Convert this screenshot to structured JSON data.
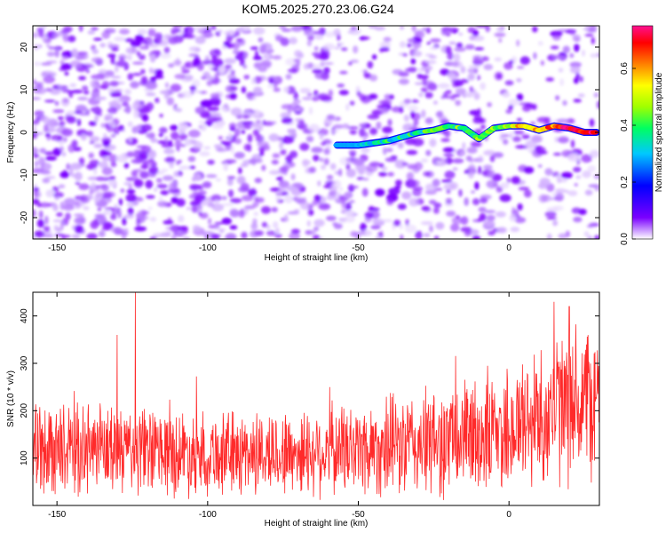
{
  "title": "KOM5.2025.270.23.06.G24",
  "colors": {
    "snr_line": "#ff2a2a",
    "spec_dots": "#8a2be2",
    "background": "#ffffff"
  },
  "chart_data": [
    {
      "type": "heatmap",
      "name": "spectrogram",
      "xlabel": "Height of straight line (km)",
      "ylabel": "Frequency (Hz)",
      "xlim": [
        -158,
        30
      ],
      "ylim": [
        -25,
        25
      ],
      "xticks": [
        -150,
        -100,
        -50,
        0
      ],
      "yticks": [
        -20,
        -10,
        0,
        10,
        20
      ],
      "colorbar": {
        "label": "Normalized spectral amplitude",
        "ticks": [
          0.0,
          0.2,
          0.4,
          0.6
        ],
        "range": [
          0.0,
          0.75
        ]
      },
      "signal_track": {
        "description": "coherent signal line",
        "x": [
          -57,
          -50,
          -45,
          -40,
          -35,
          -30,
          -25,
          -20,
          -15,
          -10,
          -5,
          0,
          5,
          10,
          15,
          20,
          25,
          29
        ],
        "frequency": [
          -3,
          -3,
          -2.5,
          -2,
          -1,
          0,
          0.5,
          1.5,
          1,
          -1.5,
          1,
          1.5,
          1.5,
          0.5,
          1.5,
          1,
          0,
          0
        ],
        "amplitude": [
          0.25,
          0.3,
          0.32,
          0.34,
          0.35,
          0.36,
          0.38,
          0.4,
          0.4,
          0.42,
          0.45,
          0.5,
          0.55,
          0.6,
          0.65,
          0.7,
          0.72,
          0.75
        ]
      }
    },
    {
      "type": "line",
      "name": "snr",
      "xlabel": "Height of straight line (km)",
      "ylabel": "SNR (10 * v/v)",
      "xlim": [
        -158,
        30
      ],
      "ylim": [
        0,
        450
      ],
      "xticks": [
        -150,
        -100,
        -50,
        0
      ],
      "yticks": [
        100,
        200,
        300,
        400
      ],
      "series": [
        {
          "name": "SNR",
          "envelope_x": [
            -158,
            -125,
            -100,
            -75,
            -50,
            -25,
            0,
            15,
            30
          ],
          "envelope_mean": [
            120,
            115,
            110,
            110,
            120,
            130,
            160,
            200,
            230
          ],
          "envelope_spread": [
            90,
            90,
            85,
            85,
            95,
            110,
            130,
            150,
            160
          ],
          "spikes": [
            {
              "x": -124,
              "y": 450
            },
            {
              "x": -130,
              "y": 360
            },
            {
              "x": 15,
              "y": 430
            },
            {
              "x": 20,
              "y": 420
            }
          ]
        }
      ]
    }
  ]
}
